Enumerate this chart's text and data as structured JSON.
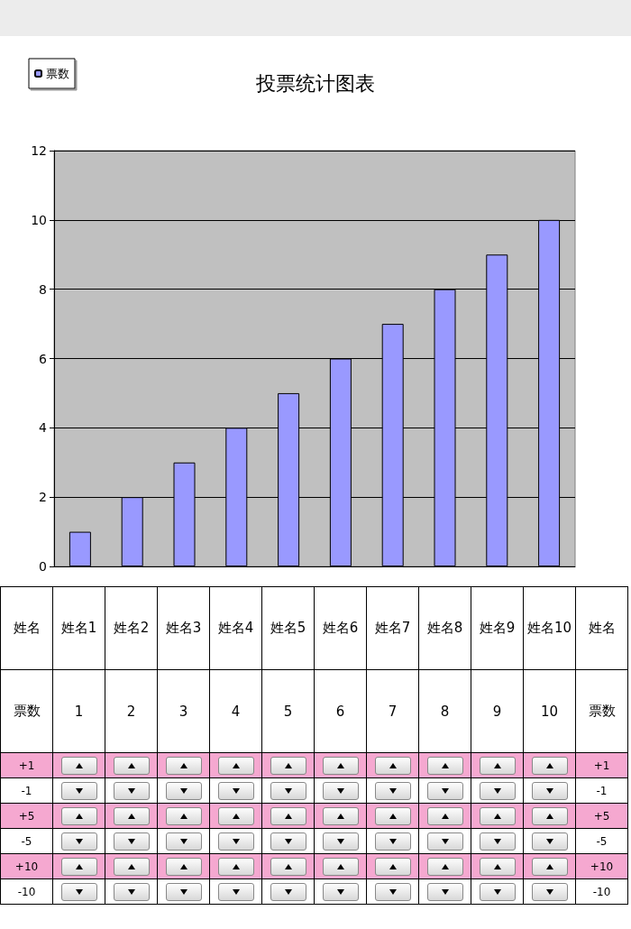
{
  "chart_data": {
    "type": "bar",
    "title": "投票统计图表",
    "xlabel": "姓名",
    "categories": [
      "姓名1",
      "姓名2",
      "姓名3",
      "姓名4",
      "姓名5",
      "姓名6",
      "姓名7",
      "姓名8",
      "姓名9",
      "姓名10"
    ],
    "series": [
      {
        "name": "票数",
        "color": "#9999ff",
        "values": [
          1,
          2,
          3,
          4,
          5,
          6,
          7,
          8,
          9,
          10
        ]
      }
    ],
    "ylim": [
      0,
      12
    ],
    "yticks": [
      0,
      2,
      4,
      6,
      8,
      10,
      12
    ],
    "grid": "y",
    "legend": "top left",
    "data_labels": true,
    "annotations": [
      "+1",
      "-1",
      "+5",
      "-5",
      "+10",
      "-10"
    ]
  }
}
